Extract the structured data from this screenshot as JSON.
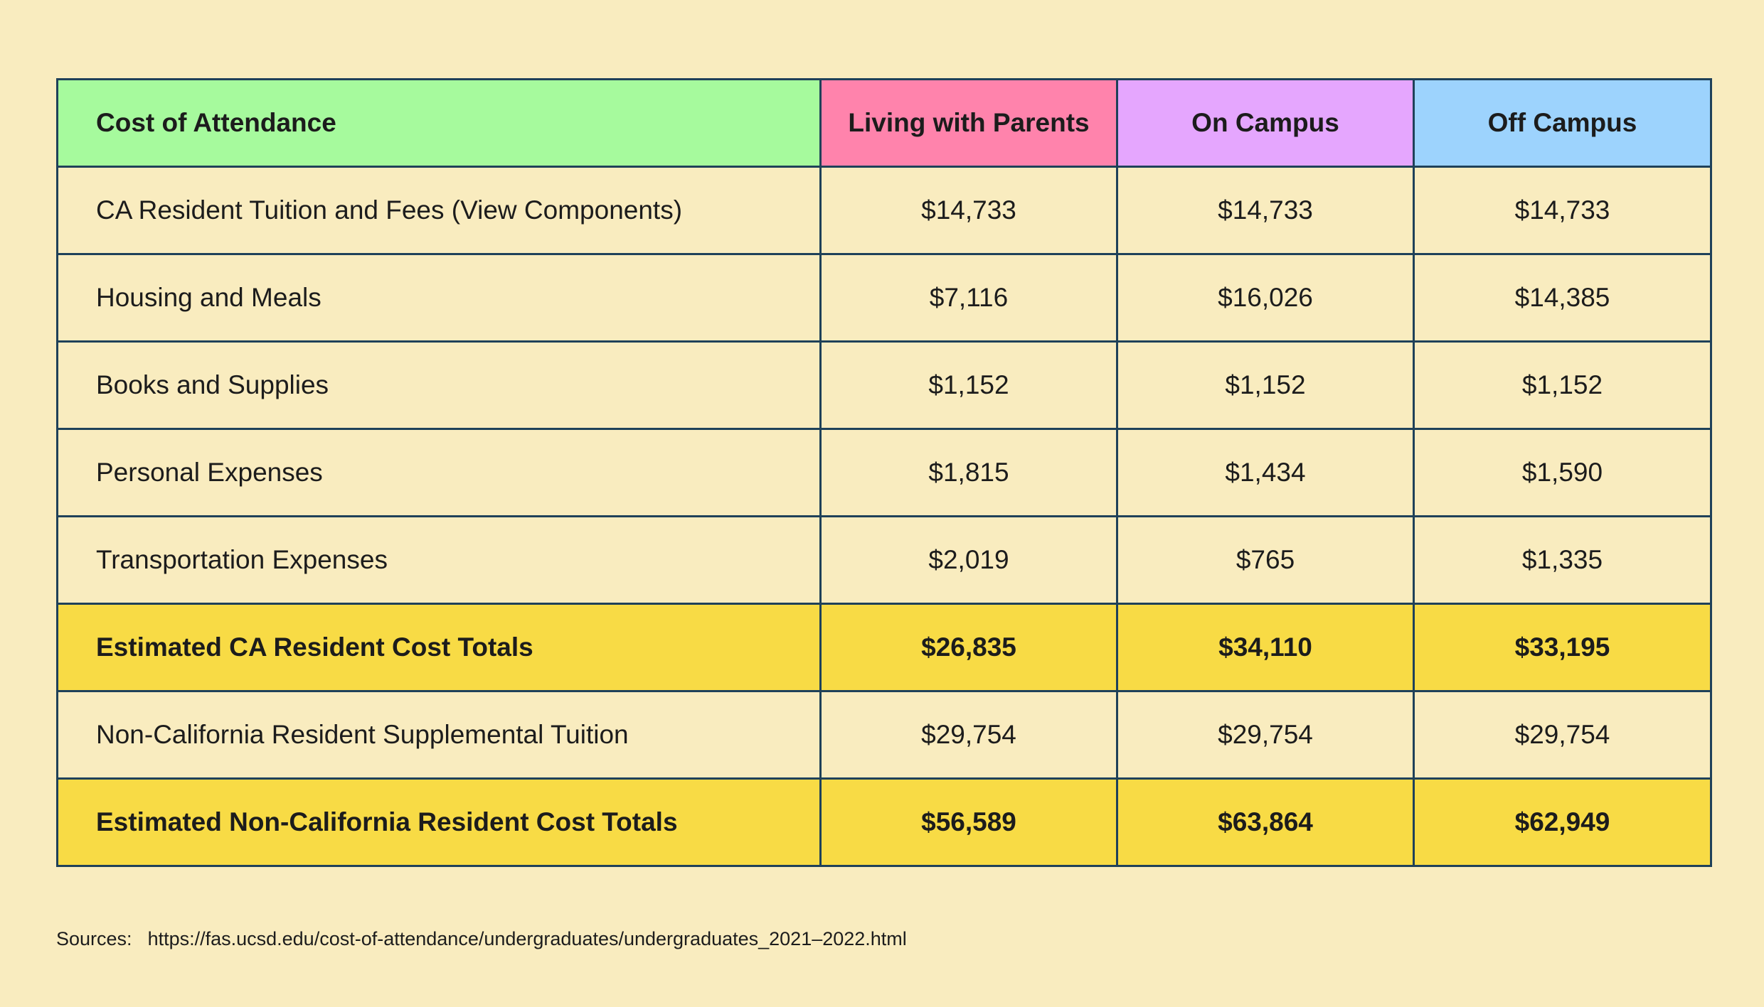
{
  "table": {
    "headers": [
      "Cost of Attendance",
      "Living with Parents",
      "On Campus",
      "Off Campus"
    ],
    "header_colors": [
      "#a6fa9d",
      "#ff83ac",
      "#e5a6fe",
      "#9dd3fd"
    ],
    "total_row_color": "#f8db45",
    "rows": [
      {
        "label": "CA Resident Tuition and Fees (View Components)",
        "values": [
          "$14,733",
          "$14,733",
          "$14,733"
        ]
      },
      {
        "label": "Housing and Meals",
        "values": [
          "$7,116",
          "$16,026",
          "$14,385"
        ]
      },
      {
        "label": "Books and Supplies",
        "values": [
          "$1,152",
          "$1,152",
          "$1,152"
        ]
      },
      {
        "label": "Personal Expenses",
        "values": [
          "$1,815",
          "$1,434",
          "$1,590"
        ]
      },
      {
        "label": "Transportation Expenses",
        "values": [
          "$2,019",
          "$765",
          "$1,335"
        ]
      },
      {
        "label": "Estimated CA Resident Cost Totals",
        "values": [
          "$26,835",
          "$34,110",
          "$33,195"
        ]
      },
      {
        "label": "Non-California Resident Supplemental Tuition",
        "values": [
          "$29,754",
          "$29,754",
          "$29,754"
        ]
      },
      {
        "label": "Estimated Non-California Resident Cost Totals",
        "values": [
          "$56,589",
          "$63,864",
          "$62,949"
        ]
      }
    ]
  },
  "sources": {
    "label": "Sources:",
    "url": "https://fas.ucsd.edu/cost-of-attendance/undergraduates/undergraduates_2021–2022.html"
  }
}
